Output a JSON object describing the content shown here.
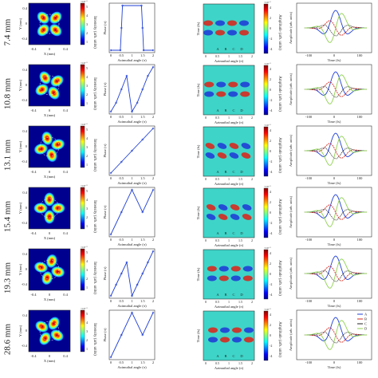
{
  "figure": {
    "row_labels": [
      "7.4 mm",
      "10.8 mm",
      "13.1 mm",
      "15.4 mm",
      "19.3 mm",
      "28.6 mm"
    ],
    "colorbar_labels": {
      "intensity": "Intensity (arb. units)",
      "amplitude": "Amplitude (arb. units)"
    },
    "colorbar_exponent": "×10⁻³",
    "colors": {
      "blue": "#1f3fd6",
      "red": "#d62a1f",
      "green": "#8fd14f",
      "dark": "#222222"
    }
  },
  "chart_data": [
    {
      "type": "heatmap",
      "panel": "intensity",
      "xlabel": "X (mm)",
      "ylabel": "Y (mm)",
      "x_ticks": [
        "-0.4",
        "0",
        "0.4"
      ],
      "y_ticks": [
        "0.4",
        "0",
        "-0.4"
      ],
      "colorbar_ticks": [
        "5",
        "4",
        "3",
        "2",
        "1"
      ]
    },
    {
      "type": "line",
      "panel": "phase",
      "xlabel": "Azimuthal angle (π)",
      "ylabel": "Phase (π)",
      "x_ticks": [
        "0",
        "0.5",
        "1",
        "1.5",
        "2"
      ],
      "xlim": [
        0,
        2
      ],
      "ylim": [
        -1,
        1
      ],
      "series": [
        {
          "row": "7.4 mm",
          "x": [
            0,
            0.45,
            0.5,
            0.55,
            1.45,
            1.5,
            1.55,
            2
          ],
          "y": [
            -1,
            -1,
            0,
            1,
            1,
            0,
            -1,
            -1
          ]
        },
        {
          "row": "10.8 mm",
          "x": [
            0,
            0.25,
            0.5,
            0.75,
            1,
            1.25,
            1.5,
            1.75,
            2
          ],
          "y": [
            -1,
            -0.6,
            0,
            0.6,
            -1,
            -0.6,
            0,
            0.6,
            1
          ]
        },
        {
          "row": "13.1 mm",
          "x": [
            0,
            0.5,
            1,
            1.5,
            2
          ],
          "y": [
            -1,
            -0.5,
            0,
            0.5,
            1
          ]
        },
        {
          "row": "15.4 mm",
          "x": [
            0,
            0.5,
            1,
            1.5,
            2
          ],
          "y": [
            -1,
            0,
            1,
            0,
            1
          ]
        },
        {
          "row": "19.3 mm",
          "x": [
            0,
            0.25,
            0.5,
            0.75,
            1,
            1.25,
            1.5,
            1.75,
            2
          ],
          "y": [
            -1,
            -0.5,
            0,
            0.5,
            -1,
            -0.5,
            0,
            0.5,
            1
          ]
        },
        {
          "row": "28.6 mm",
          "x": [
            0,
            0.5,
            1,
            1.5,
            2
          ],
          "y": [
            -1,
            0,
            1,
            0,
            1
          ]
        }
      ]
    },
    {
      "type": "heatmap",
      "panel": "amplitude",
      "xlabel": "Azimuthal angle (π)",
      "ylabel": "Time (fs)",
      "x_ticks": [
        "0",
        "0.5",
        "1",
        "1.5",
        "2"
      ],
      "point_labels": [
        "A",
        "B",
        "C",
        "D"
      ],
      "colorbar_ticks": [
        "4",
        "2",
        "0",
        "-2",
        "-4"
      ]
    },
    {
      "type": "line",
      "panel": "amplitude-time",
      "xlabel": "Time (fs)",
      "ylabel": "Amplitude (arb. units)",
      "legend": [
        "A",
        "B",
        "C",
        "D"
      ],
      "x_ticks": [
        "-100",
        "0",
        "100"
      ],
      "xlim": [
        -100,
        100
      ]
    }
  ]
}
